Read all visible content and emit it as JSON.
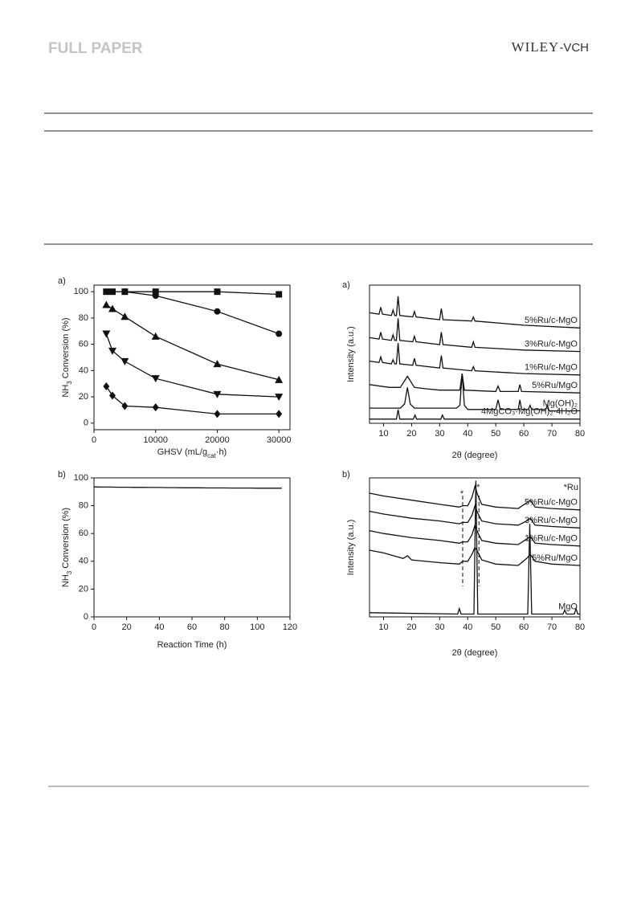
{
  "header": {
    "section": "FULL PAPER",
    "publisher": [
      "WILEY",
      "-VCH"
    ]
  },
  "chart_data": [
    {
      "type": "line",
      "panel_label": "a)",
      "x": [
        2000,
        3000,
        5000,
        10000,
        20000,
        30000
      ],
      "xlim": [
        0,
        31800
      ],
      "ylim": [
        -5,
        105
      ],
      "xticks": [
        0,
        10000,
        20000,
        30000
      ],
      "yticks": [
        0,
        20,
        40,
        60,
        80,
        100
      ],
      "xlabel": [
        "GHSV (mL/g",
        "cat",
        "·h)"
      ],
      "ylabel": [
        "NH",
        "3",
        " Conversion (%)"
      ],
      "series": [
        {
          "marker": "square",
          "color": "#111",
          "values": [
            100,
            100,
            100,
            100,
            100,
            98
          ]
        },
        {
          "marker": "circle",
          "color": "#111",
          "values": [
            null,
            null,
            100,
            97,
            85,
            68
          ]
        },
        {
          "marker": "triangle-up",
          "color": "#111",
          "values": [
            90,
            87,
            81,
            66,
            45,
            33
          ]
        },
        {
          "marker": "triangle-down",
          "color": "#111",
          "values": [
            68,
            55,
            47,
            34,
            22,
            20
          ]
        },
        {
          "marker": "diamond",
          "color": "#111",
          "values": [
            28,
            21,
            13,
            12,
            7,
            7
          ]
        }
      ]
    },
    {
      "type": "line",
      "panel_label": "b)",
      "x": [
        0,
        5,
        10,
        15,
        20,
        25,
        30,
        35,
        40,
        45,
        50,
        55,
        60,
        65,
        70,
        75,
        80,
        85,
        90,
        95,
        100,
        105,
        110,
        115
      ],
      "xlim": [
        0,
        120
      ],
      "ylim": [
        0,
        100
      ],
      "xticks": [
        0,
        20,
        40,
        60,
        80,
        100,
        120
      ],
      "yticks": [
        0,
        20,
        40,
        60,
        80,
        100
      ],
      "xlabel": [
        "Reaction Time (h)"
      ],
      "ylabel": [
        "NH",
        "3",
        " Conversion (%)"
      ],
      "series": [
        {
          "color": "#111",
          "values": [
            93.5,
            93.4,
            93.4,
            93.3,
            93.3,
            93.2,
            93.2,
            93.1,
            93.1,
            93.0,
            93.0,
            92.9,
            92.9,
            92.9,
            92.8,
            92.8,
            92.8,
            92.7,
            92.7,
            92.7,
            92.6,
            92.6,
            92.6,
            92.6
          ]
        }
      ]
    },
    {
      "type": "line",
      "panel_label": "a)",
      "xlim": [
        5,
        80
      ],
      "ylim": [
        0,
        100
      ],
      "xticks": [
        10,
        20,
        30,
        40,
        50,
        60,
        70,
        80
      ],
      "xlabel": [
        "2θ (degree)"
      ],
      "ylabel": [
        "Intensity (a.u.)"
      ],
      "series": [
        {
          "name": "5%Ru/c-MgO",
          "color": "#111",
          "x": [
            5,
            8.4,
            9,
            9.6,
            12.8,
            13.4,
            14,
            14.6,
            15.2,
            15.8,
            20.4,
            21,
            21.6,
            30,
            30.6,
            31.2,
            41.4,
            42,
            42.6,
            60,
            80
          ],
          "values": [
            80,
            79,
            84,
            79,
            78,
            82,
            78,
            78,
            92,
            78,
            77,
            81,
            77,
            75,
            83,
            75,
            74,
            77,
            74,
            71,
            69
          ]
        },
        {
          "name": "3%Ru/c-MgO",
          "color": "#111",
          "x": [
            5,
            8.4,
            9,
            9.6,
            12.8,
            13.4,
            14,
            14.6,
            15.2,
            15.8,
            20.4,
            21,
            21.6,
            30,
            30.6,
            31.2,
            41.4,
            42,
            42.6,
            60,
            80
          ],
          "values": [
            62,
            61,
            66,
            61,
            60,
            64,
            60,
            60,
            76,
            60,
            59,
            63,
            59,
            57,
            66,
            57,
            55,
            59,
            55,
            53,
            52
          ]
        },
        {
          "name": "1%Ru/c-MgO",
          "color": "#111",
          "x": [
            5,
            8.4,
            9,
            9.6,
            12.8,
            13.4,
            14,
            14.6,
            15.2,
            15.8,
            20.4,
            21,
            21.6,
            30,
            30.6,
            31.2,
            41.4,
            42,
            42.6,
            60,
            80
          ],
          "values": [
            45,
            44,
            48,
            44,
            43,
            46,
            43,
            43,
            58,
            43,
            42,
            47,
            42,
            40,
            49,
            40,
            38,
            41,
            38,
            36,
            35
          ]
        },
        {
          "name": "5%Ru/MgO",
          "color": "#111",
          "x": [
            5,
            12,
            16,
            18.5,
            21,
            25,
            30,
            35,
            37.2,
            38,
            38.8,
            50,
            50.8,
            51.6,
            58,
            58.6,
            59.2,
            80
          ],
          "values": [
            28,
            26,
            26,
            34,
            26,
            25,
            24,
            24,
            24,
            36,
            24,
            23,
            27,
            23,
            23,
            28,
            23,
            22
          ]
        },
        {
          "name": "Mg(OH)₂",
          "color": "#111",
          "x": [
            5,
            16,
            17.5,
            18.5,
            19.5,
            21,
            36,
            37.2,
            38,
            38.8,
            40,
            50,
            50.8,
            51.6,
            58,
            58.6,
            59.2,
            61.6,
            62.2,
            62.8,
            67.8,
            68.4,
            69,
            80
          ],
          "values": [
            11,
            11,
            14,
            26,
            14,
            11,
            11,
            13,
            36,
            13,
            10,
            10,
            17,
            10,
            10,
            17,
            10,
            10,
            13,
            10,
            10,
            13,
            9,
            9
          ]
        },
        {
          "name": "4MgCO₃·Mg(OH)₂·4H₂O",
          "color": "#111",
          "x": [
            5,
            14.6,
            15.2,
            15.8,
            20.6,
            21.2,
            21.8,
            30.4,
            31,
            31.6,
            80
          ],
          "values": [
            3,
            3,
            10,
            3,
            3,
            6,
            3,
            3,
            6,
            3,
            3
          ]
        }
      ]
    },
    {
      "type": "line",
      "panel_label": "b)",
      "xlim": [
        5,
        80
      ],
      "ylim": [
        0,
        100
      ],
      "xticks": [
        10,
        20,
        30,
        40,
        50,
        60,
        70,
        80
      ],
      "xlabel": [
        "2θ (degree)"
      ],
      "ylabel": [
        "Intensity (a.u.)"
      ],
      "legend_text": "*Ru",
      "reference_lines": [
        38.2,
        44
      ],
      "annotations": [
        {
          "text": "*",
          "x": 38.2
        },
        {
          "text": "*",
          "x": 44
        }
      ],
      "series": [
        {
          "name": "5%Ru/c-MgO",
          "color": "#111",
          "x": [
            5,
            10,
            20,
            30,
            37,
            38.2,
            40,
            41.5,
            42.6,
            43.5,
            45,
            50,
            58,
            61,
            62.3,
            64,
            70,
            80
          ],
          "values": [
            89,
            87,
            84,
            81,
            79,
            80,
            80,
            86,
            94,
            88,
            81,
            79,
            78,
            82,
            84,
            79,
            78,
            77
          ]
        },
        {
          "name": "3%Ru/c-MgO",
          "color": "#111",
          "x": [
            5,
            10,
            20,
            30,
            37,
            38.2,
            40,
            41.5,
            42.6,
            43.5,
            45,
            50,
            58,
            61,
            62.3,
            64,
            70,
            80
          ],
          "values": [
            76,
            74,
            71,
            69,
            67,
            68,
            68,
            73,
            80,
            75,
            69,
            67,
            66,
            69,
            71,
            66,
            65,
            64
          ]
        },
        {
          "name": "1%Ru/c-MgO",
          "color": "#111",
          "x": [
            5,
            10,
            20,
            30,
            37,
            38.2,
            40,
            41.5,
            42.6,
            43.5,
            45,
            50,
            58,
            61,
            62.3,
            64,
            70,
            80
          ],
          "values": [
            62,
            60,
            57,
            55,
            53,
            54,
            54,
            59,
            66,
            61,
            55,
            53,
            52,
            56,
            58,
            53,
            52,
            51
          ]
        },
        {
          "name": "5%Ru/MgO",
          "color": "#111",
          "x": [
            5,
            10,
            17,
            18.5,
            20,
            30,
            37,
            38.2,
            40,
            41.5,
            42.6,
            43.5,
            45,
            50,
            58,
            61,
            62.3,
            64,
            70,
            80
          ],
          "values": [
            48,
            46,
            42,
            44,
            41,
            39,
            38,
            40,
            40,
            45,
            50,
            47,
            41,
            38,
            37,
            42,
            45,
            40,
            38,
            37
          ]
        },
        {
          "name": "MgO",
          "color": "#111",
          "x": [
            5,
            36.4,
            37,
            37.6,
            42.2,
            42.9,
            43.6,
            61.4,
            62.1,
            62.8,
            74,
            74.6,
            75.2,
            78,
            78.6,
            79.2,
            80
          ],
          "values": [
            3,
            2,
            6,
            2,
            2,
            98,
            2,
            2,
            67,
            2,
            2,
            5,
            2,
            2,
            6,
            2,
            2
          ]
        }
      ]
    }
  ]
}
